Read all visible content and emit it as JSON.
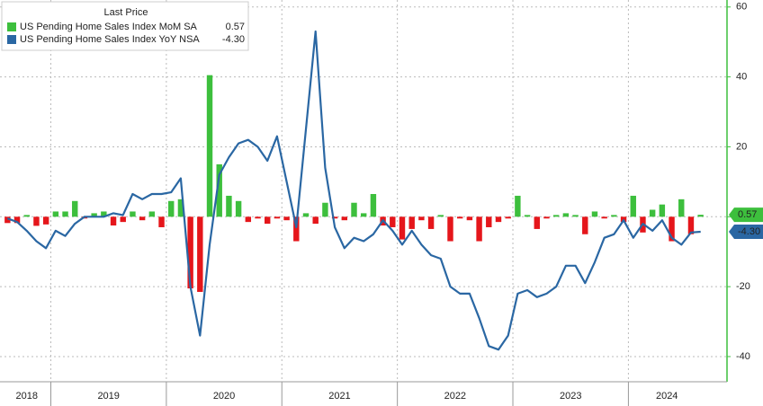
{
  "chart_data": {
    "type": "bar-line",
    "legend_title": "Last Price",
    "categories": [
      "2018",
      null,
      null,
      null,
      null,
      "2019",
      null,
      null,
      null,
      null,
      null,
      null,
      null,
      null,
      null,
      null,
      null,
      "2020",
      null,
      null,
      null,
      null,
      null,
      null,
      null,
      null,
      null,
      null,
      null,
      "2021",
      null,
      null,
      null,
      null,
      null,
      null,
      null,
      null,
      null,
      null,
      null,
      "2022",
      null,
      null,
      null,
      null,
      null,
      null,
      null,
      null,
      null,
      null,
      null,
      "2023",
      null,
      null,
      null,
      null,
      null,
      null,
      null,
      null,
      null,
      null,
      null,
      "2024",
      null,
      null,
      null,
      null,
      null,
      null,
      null
    ],
    "series": [
      {
        "name": "US Pending Home Sales Index MoM SA",
        "type": "bar",
        "color": "#3dbf3d",
        "negative_color": "#e5161b",
        "last_label": "0.57",
        "values": [
          -1.8,
          -1.8,
          0.5,
          -2.6,
          -2.2,
          1.5,
          1.5,
          4.5,
          -0.5,
          1.0,
          1.5,
          -2.5,
          -1.5,
          1.5,
          -1.0,
          1.5,
          -3.0,
          4.5,
          5.0,
          -20.5,
          -21.5,
          40.5,
          15.0,
          6.0,
          4.5,
          -1.5,
          -0.5,
          -2.0,
          -0.5,
          -1.0,
          -7.0,
          1.0,
          -2.0,
          4.0,
          -0.5,
          -1.0,
          4.0,
          1.0,
          6.5,
          -2.5,
          -3.0,
          -6.5,
          -3.5,
          -1.0,
          -3.5,
          0.5,
          -7.0,
          -0.5,
          -1.0,
          -7.0,
          -3.0,
          -1.5,
          -0.5,
          6.0,
          0.5,
          -3.5,
          -0.5,
          0.5,
          1.0,
          0.5,
          -5.0,
          1.5,
          -0.5,
          0.5,
          -1.5,
          6.0,
          -4.5,
          2.0,
          3.5,
          -7.0,
          5.0,
          -5.0,
          0.57
        ]
      },
      {
        "name": "US Pending Home Sales Index YoY NSA",
        "type": "line",
        "color": "#2a67a3",
        "last_label": "-4.30",
        "values": [
          -0.5,
          -1.5,
          -4,
          -7,
          -9,
          -4,
          -5.5,
          -2,
          0,
          0,
          0,
          1,
          0.5,
          6.5,
          5,
          6.5,
          6.5,
          7,
          11,
          -20,
          -34,
          -8,
          12,
          17,
          21,
          22,
          20,
          16,
          23,
          10,
          -3,
          25,
          53,
          14,
          -3,
          -9,
          -6,
          -7,
          -5,
          -1,
          -4,
          -8,
          -4,
          -8,
          -11,
          -12,
          -20,
          -22,
          -22,
          -29,
          -37,
          -38,
          -34,
          -22,
          -21,
          -23,
          -22,
          -20,
          -14,
          -14,
          -19,
          -13,
          -6,
          -5,
          -1,
          -6,
          -2,
          -4,
          -1,
          -6,
          -8,
          -4.5,
          -4.3
        ]
      }
    ],
    "ylim": [
      -47.2,
      62
    ],
    "yticks": [
      60,
      40,
      20,
      0,
      -20,
      -40
    ],
    "grid": true,
    "legend": "upper left"
  }
}
